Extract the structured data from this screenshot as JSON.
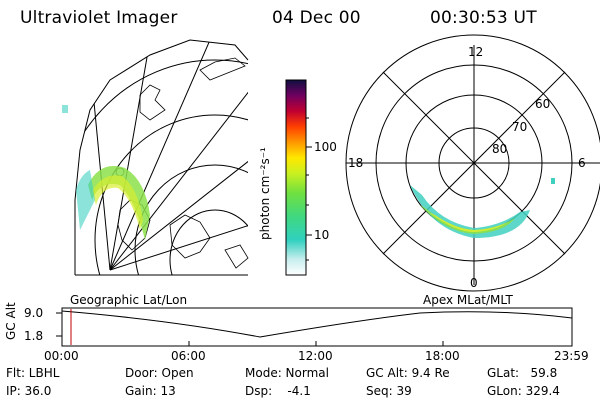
{
  "header": {
    "instrument": "Ultraviolet Imager",
    "date": "04 Dec 00",
    "time": "00:30:53 UT"
  },
  "colorbar": {
    "unit_label": "photon cm⁻²s⁻¹",
    "ticks": [
      "100",
      "10"
    ]
  },
  "polar_plot": {
    "mlt_labels": [
      "12",
      "18",
      "6",
      "0"
    ],
    "mlat_labels": [
      "60",
      "70",
      "80"
    ]
  },
  "panel_labels": {
    "geographic": "Geographic Lat/Lon",
    "apex": "Apex MLat/MLT"
  },
  "altitude_plot": {
    "axis_title": "GC Alt",
    "y_ticks": [
      "9.0",
      "1.8"
    ],
    "x_ticks": [
      "00:00",
      "06:00",
      "12:00",
      "18:00",
      "23:59"
    ]
  },
  "info": {
    "flt": "Flt: LBHL",
    "ip": "IP: 36.0",
    "door": "Door: Open",
    "gain": "Gain: 13",
    "mode": "Mode: Normal",
    "dsp": "Dsp:    -4.1",
    "gc_alt": "GC Alt: 9.4 Re",
    "seq": "Seq: 39",
    "glat": "GLat:   59.8",
    "glon": "GLon: 329.4"
  }
}
